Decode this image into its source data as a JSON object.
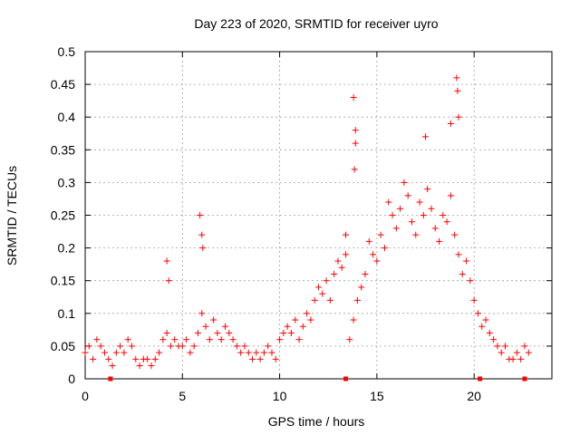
{
  "chart_data": {
    "type": "scatter",
    "title": "Day 223 of 2020, SRMTID for receiver uyro",
    "xlabel": "GPS time / hours",
    "ylabel": "SRMTID / TECUs",
    "xlim": [
      0,
      24
    ],
    "ylim": [
      0,
      0.5
    ],
    "xticks": [
      0,
      5,
      10,
      15,
      20
    ],
    "xtick_labels": [
      "0",
      "5",
      "10",
      "15",
      "20"
    ],
    "yticks": [
      0,
      0.05,
      0.1,
      0.15,
      0.2,
      0.25,
      0.3,
      0.35,
      0.4,
      0.45,
      0.5
    ],
    "ytick_labels": [
      "0",
      "0.05",
      "0.1",
      "0.15",
      "0.2",
      "0.25",
      "0.3",
      "0.35",
      "0.4",
      "0.45",
      "0.5"
    ],
    "grid": true,
    "marker": "+",
    "color": "#ff0000",
    "series": [
      {
        "name": "SRMTID",
        "x": [
          0.0,
          0.2,
          0.4,
          0.6,
          0.8,
          1.0,
          1.2,
          1.4,
          1.6,
          1.8,
          2.0,
          2.2,
          2.4,
          2.6,
          2.8,
          3.0,
          3.2,
          3.4,
          3.6,
          3.8,
          4.0,
          4.2,
          4.4,
          4.6,
          4.8,
          5.0,
          5.2,
          5.4,
          5.6,
          5.8,
          6.0,
          6.2,
          6.4,
          6.6,
          6.8,
          7.0,
          7.2,
          7.4,
          7.6,
          7.8,
          8.0,
          8.2,
          8.4,
          8.6,
          8.8,
          9.0,
          9.2,
          9.4,
          9.6,
          9.8,
          10.0,
          10.2,
          10.4,
          10.6,
          10.8,
          11.0,
          11.2,
          11.4,
          11.6,
          11.8,
          12.0,
          12.2,
          12.4,
          12.6,
          12.8,
          13.0,
          13.2,
          13.4,
          13.6,
          13.8,
          14.0,
          14.2,
          14.4,
          14.6,
          14.8,
          15.0,
          15.2,
          15.4,
          15.6,
          15.8,
          16.0,
          16.2,
          16.4,
          16.6,
          16.8,
          17.0,
          17.2,
          17.4,
          17.6,
          17.8,
          18.0,
          18.2,
          18.4,
          18.6,
          18.8,
          19.0,
          19.2,
          19.4,
          19.6,
          19.8,
          20.0,
          20.2,
          20.4,
          20.6,
          20.8,
          21.0,
          21.2,
          21.4,
          21.6,
          21.8,
          22.0,
          22.2,
          22.4,
          22.6,
          22.8,
          4.2,
          4.3,
          5.9,
          6.0,
          6.05,
          13.4,
          13.8,
          13.9,
          13.85,
          13.9,
          19.1,
          19.15,
          19.2,
          18.8,
          17.5
        ],
        "y": [
          0.04,
          0.05,
          0.03,
          0.06,
          0.05,
          0.04,
          0.03,
          0.02,
          0.04,
          0.05,
          0.04,
          0.06,
          0.05,
          0.03,
          0.02,
          0.03,
          0.03,
          0.02,
          0.03,
          0.04,
          0.06,
          0.07,
          0.05,
          0.06,
          0.05,
          0.05,
          0.06,
          0.04,
          0.05,
          0.07,
          0.1,
          0.08,
          0.06,
          0.09,
          0.07,
          0.06,
          0.08,
          0.07,
          0.06,
          0.05,
          0.04,
          0.05,
          0.04,
          0.03,
          0.04,
          0.03,
          0.04,
          0.05,
          0.04,
          0.03,
          0.06,
          0.07,
          0.08,
          0.07,
          0.09,
          0.06,
          0.08,
          0.1,
          0.09,
          0.12,
          0.14,
          0.13,
          0.15,
          0.12,
          0.16,
          0.18,
          0.17,
          0.19,
          0.06,
          0.09,
          0.12,
          0.14,
          0.16,
          0.21,
          0.19,
          0.18,
          0.22,
          0.2,
          0.27,
          0.25,
          0.23,
          0.26,
          0.3,
          0.28,
          0.24,
          0.22,
          0.27,
          0.25,
          0.29,
          0.26,
          0.23,
          0.21,
          0.25,
          0.24,
          0.28,
          0.22,
          0.19,
          0.16,
          0.18,
          0.15,
          0.12,
          0.1,
          0.08,
          0.09,
          0.07,
          0.06,
          0.05,
          0.04,
          0.05,
          0.03,
          0.03,
          0.04,
          0.03,
          0.05,
          0.04,
          0.18,
          0.15,
          0.25,
          0.22,
          0.2,
          0.22,
          0.43,
          0.36,
          0.32,
          0.38,
          0.46,
          0.44,
          0.4,
          0.39,
          0.37
        ]
      }
    ],
    "xaxis_markers_at_zero": [
      1.3,
      13.4,
      20.3,
      22.6
    ]
  }
}
